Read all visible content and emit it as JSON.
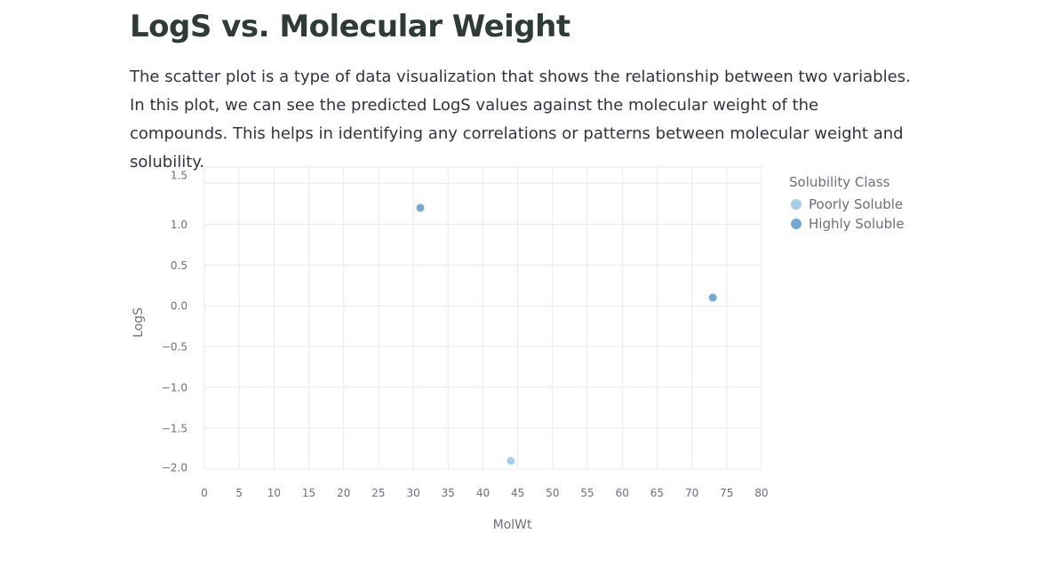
{
  "page": {
    "title": "LogS vs. Molecular Weight",
    "description": "The scatter plot is a type of data visualization that shows the relationship between two variables. In this plot, we can see the predicted LogS values against the molecular weight of the compounds. This helps in identifying any correlations or patterns between molecular weight and solubility."
  },
  "chart_data": {
    "type": "scatter",
    "title": "",
    "xlabel": "MolWt",
    "ylabel": "LogS",
    "xlim": [
      0,
      80
    ],
    "ylim": [
      -2.0,
      1.5
    ],
    "x_ticks": [
      "0",
      "5",
      "10",
      "15",
      "20",
      "25",
      "30",
      "35",
      "40",
      "45",
      "50",
      "55",
      "60",
      "65",
      "70",
      "75",
      "80"
    ],
    "y_ticks": [
      "1.5",
      "1.0",
      "0.5",
      "0.0",
      "−0.5",
      "−1.0",
      "−1.5",
      "−2.0"
    ],
    "grid": true,
    "legend": {
      "title": "Solubility Class",
      "placement": "top-right-outside"
    },
    "series": [
      {
        "name": "Poorly Soluble",
        "color": "#a9cde8",
        "points": [
          {
            "x": 44,
            "y": -1.9
          }
        ]
      },
      {
        "name": "Highly Soluble",
        "color": "#73a9d4",
        "points": [
          {
            "x": 31,
            "y": 1.2
          },
          {
            "x": 73,
            "y": 0.1
          }
        ]
      }
    ]
  }
}
